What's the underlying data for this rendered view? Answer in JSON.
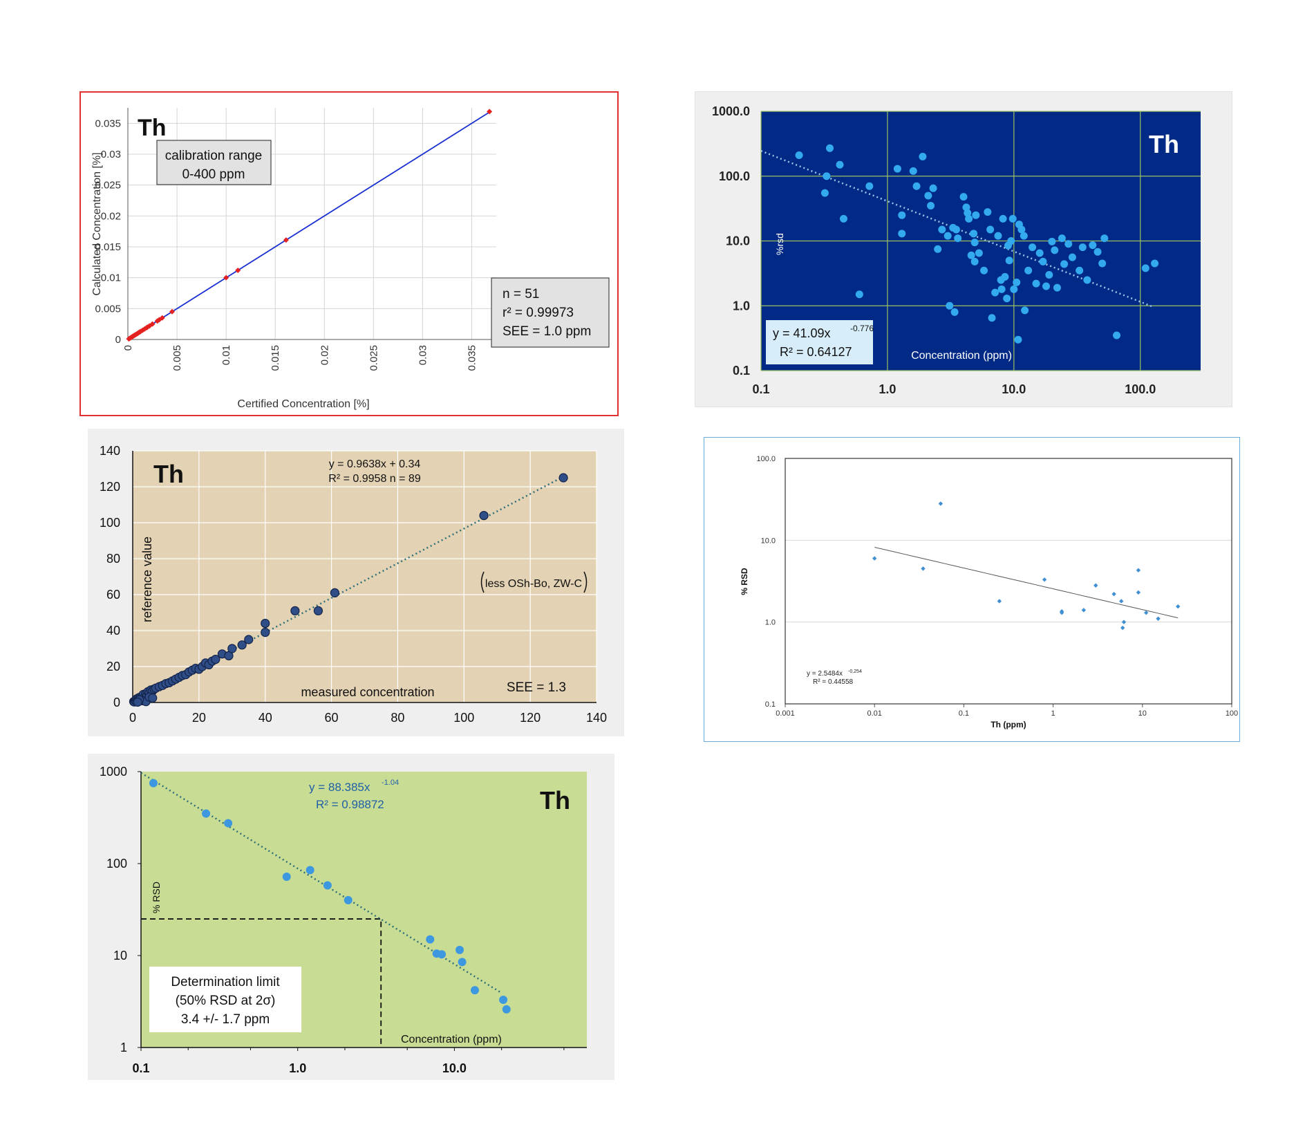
{
  "chart_data": [
    {
      "type": "scatter",
      "title": "Th",
      "xlabel": "Certified Concentration [%]",
      "ylabel": "Calculated Concentration [%]",
      "xlim": [
        0,
        0.0375
      ],
      "ylim": [
        0,
        0.0375
      ],
      "xticks": [
        "0",
        "0.005",
        "0.01",
        "0.015",
        "0.02",
        "0.025",
        "0.03",
        "0.035"
      ],
      "yticks": [
        "0",
        "0.005",
        "0.01",
        "0.015",
        "0.02",
        "0.025",
        "0.03",
        "0.035"
      ],
      "grid": true,
      "annotations": {
        "range_line1": "calibration range",
        "range_line2": "0-400 ppm",
        "n": "n = 51",
        "r2": "r² = 0.99973",
        "see": "SEE = 1.0 ppm"
      },
      "fit_line": {
        "x": [
          0,
          0.0368
        ],
        "y": [
          0,
          0.0368
        ]
      },
      "x": [
        0.0001,
        0.0002,
        0.0003,
        0.0004,
        0.0005,
        0.0006,
        0.0007,
        0.0008,
        0.0009,
        0.001,
        0.0011,
        0.0012,
        0.0013,
        0.0015,
        0.0017,
        0.0019,
        0.002,
        0.0022,
        0.0025,
        0.003,
        0.0032,
        0.0035,
        0.0045,
        0.01,
        0.0112,
        0.0161,
        0.0368
      ],
      "y": [
        0.0001,
        0.0002,
        0.0003,
        0.0004,
        0.0005,
        0.0006,
        0.0007,
        0.0008,
        0.0009,
        0.001,
        0.0011,
        0.0012,
        0.0013,
        0.0015,
        0.0017,
        0.0019,
        0.002,
        0.0022,
        0.0025,
        0.003,
        0.0032,
        0.0035,
        0.0045,
        0.01,
        0.0112,
        0.0161,
        0.0369
      ]
    },
    {
      "type": "scatter",
      "title": "Th",
      "xlabel": "Concentration (ppm)",
      "ylabel": "%rsd",
      "x_scale": "log",
      "y_scale": "log",
      "xlim": [
        0.1,
        300
      ],
      "ylim": [
        0.1,
        1000
      ],
      "xticks": [
        "0.1",
        "1.0",
        "10.0",
        "100.0"
      ],
      "yticks": [
        "0.1",
        "1.0",
        "10.0",
        "100.0",
        "1000.0"
      ],
      "grid": true,
      "annotations": {
        "eq": "y = 41.09x",
        "eq_exp": "-0.776",
        "r2": "R² = 0.64127"
      },
      "fit": {
        "a": 41.09,
        "b": -0.776,
        "x_range": [
          0.1,
          125
        ]
      },
      "x": [
        0.2,
        0.35,
        0.33,
        0.42,
        0.32,
        0.45,
        0.6,
        0.72,
        1.2,
        1.3,
        1.3,
        1.6,
        1.9,
        1.7,
        2.1,
        2.2,
        2.3,
        2.5,
        2.7,
        3.0,
        3.3,
        3.5,
        3.1,
        3.6,
        4.0,
        4.2,
        4.3,
        4.4,
        4.8,
        4.9,
        4.6,
        5.0,
        5.3,
        4.9,
        5.8,
        6.2,
        6.5,
        7.1,
        7.5,
        7.9,
        8.0,
        8.2,
        8.5,
        9.0,
        9.2,
        9.8,
        9.5,
        10.0,
        10.5,
        11.0,
        11.5,
        12.0,
        13.0,
        14.0,
        15.0,
        16.0,
        17.0,
        18.0,
        19.0,
        20.0,
        21.0,
        22.0,
        24.0,
        25.0,
        27.0,
        29.0,
        33.0,
        35.0,
        38.0,
        42.0,
        46.0,
        50.0,
        52.0,
        65.0,
        110.0,
        130.0,
        3.4,
        6.7,
        8.8,
        10.8,
        12.2
      ],
      "y": [
        210,
        270,
        100,
        150,
        55,
        22,
        1.5,
        70,
        130,
        25,
        13,
        120,
        200,
        70,
        50,
        35,
        65,
        7.5,
        15,
        12,
        16,
        15,
        1.0,
        11,
        48,
        33,
        27,
        22,
        13,
        9.5,
        6,
        25,
        6.5,
        4.8,
        3.5,
        28,
        15,
        1.6,
        12,
        2.5,
        1.8,
        22,
        2.8,
        8.5,
        5,
        22,
        10,
        1.8,
        2.3,
        18,
        15,
        12,
        3.5,
        8,
        2.2,
        6.5,
        4.8,
        2.0,
        3.0,
        9.8,
        7.2,
        1.9,
        11,
        4.4,
        9.0,
        5.6,
        3.5,
        8.0,
        2.5,
        8.6,
        6.8,
        4.5,
        11,
        0.35,
        3.8,
        4.5,
        0.8,
        0.65,
        1.3,
        0.3,
        0.85
      ]
    },
    {
      "type": "scatter",
      "title": "Th",
      "xlabel": "measured concentration",
      "ylabel": "reference value",
      "xlim": [
        0,
        140
      ],
      "ylim": [
        0,
        140
      ],
      "xticks": [
        "0",
        "20",
        "40",
        "60",
        "80",
        "100",
        "120",
        "140"
      ],
      "yticks": [
        "0",
        "20",
        "40",
        "60",
        "80",
        "100",
        "120",
        "140"
      ],
      "grid": true,
      "annotations": {
        "eq": "y = 0.9638x + 0.34",
        "r2": "R² = 0.9958   n = 89",
        "note": "less OSh-Bo, ZW-C",
        "see": "SEE = 1.3"
      },
      "fit": {
        "slope": 0.9638,
        "intercept": 0.34,
        "x_range": [
          0,
          130
        ]
      },
      "x": [
        0.3,
        0.5,
        0.8,
        1,
        1.2,
        1.5,
        1.8,
        2,
        2.3,
        2.5,
        3,
        3.2,
        3.5,
        4,
        4.3,
        4.6,
        5,
        5.5,
        6,
        6.5,
        7,
        8,
        9,
        10,
        11,
        12,
        13,
        14,
        15,
        16,
        17,
        18,
        19,
        20,
        21,
        22,
        23,
        24,
        25,
        27,
        29,
        30,
        33,
        35,
        40,
        40,
        49,
        56,
        61,
        106,
        130,
        3,
        4,
        5,
        6,
        2,
        1.5
      ],
      "y": [
        0.5,
        0.3,
        1.2,
        0.8,
        2,
        1.5,
        2.6,
        1.8,
        3,
        2.2,
        3.5,
        4.5,
        2.8,
        5,
        3.9,
        6,
        5.2,
        7,
        6.5,
        7.5,
        8,
        8.8,
        9.5,
        10.5,
        11,
        12,
        13,
        14,
        15,
        15.5,
        17,
        18,
        19,
        18.5,
        20,
        22,
        21,
        23,
        24,
        27,
        26,
        30,
        32,
        35,
        39,
        44,
        51,
        51,
        61,
        104,
        125,
        1,
        0.5,
        3,
        2.5,
        1.5,
        0.2
      ]
    },
    {
      "type": "scatter",
      "title": "",
      "xlabel": "Th (ppm)",
      "ylabel": "% RSD",
      "x_scale": "log",
      "y_scale": "log",
      "xlim": [
        0.001,
        100
      ],
      "ylim": [
        0.1,
        100
      ],
      "xticks": [
        "0.001",
        "0.01",
        "0.1",
        "1",
        "10",
        "100"
      ],
      "yticks": [
        "0.1",
        "1.0",
        "10.0",
        "100.0"
      ],
      "grid": true,
      "annotations": {
        "eq": "y = 2.5484x",
        "eq_exp": "-0.254",
        "r2": "R² = 0.44558"
      },
      "fit": {
        "a": 2.5484,
        "b": -0.254,
        "x_range": [
          0.01,
          25
        ]
      },
      "x": [
        0.01,
        0.035,
        0.055,
        0.25,
        0.8,
        1.25,
        1.25,
        2.2,
        3.0,
        4.8,
        5.8,
        6.0,
        6.2,
        9.0,
        9.0,
        11.0,
        15.0,
        25.0
      ],
      "y": [
        6.0,
        4.5,
        28.0,
        1.8,
        3.3,
        1.35,
        1.3,
        1.4,
        2.8,
        2.2,
        1.8,
        0.85,
        1.0,
        4.3,
        2.3,
        1.3,
        1.1,
        1.55
      ]
    },
    {
      "type": "scatter",
      "title": "Th",
      "xlabel": "Concentration (ppm)",
      "ylabel": "% RSD",
      "x_scale": "log",
      "y_scale": "log",
      "xlim": [
        0.1,
        70
      ],
      "ylim": [
        1,
        1000
      ],
      "xticks": [
        "0.1",
        "1.0",
        "10.0"
      ],
      "yticks": [
        "1",
        "10",
        "100",
        "1000"
      ],
      "annotations": {
        "eq": "y = 88.385x",
        "eq_exp": "-1.04",
        "r2": "R² = 0.98872",
        "box_line1": "Determination limit",
        "box_line2": "(50% RSD at 2σ)",
        "box_line3": "3.4 +/- 1.7 ppm"
      },
      "fit": {
        "a": 88.385,
        "b": -1.04,
        "x_range": [
          0.1,
          20
        ]
      },
      "limit": {
        "x": 3.4,
        "y": 25
      },
      "x": [
        0.12,
        0.26,
        0.36,
        0.85,
        1.2,
        1.55,
        2.1,
        7.0,
        7.7,
        8.3,
        10.8,
        11.2,
        13.5,
        20.5,
        21.5
      ],
      "y": [
        750,
        350,
        275,
        72,
        85,
        58,
        40,
        15,
        10.5,
        10.3,
        11.5,
        8.5,
        4.2,
        3.3,
        2.6
      ]
    }
  ]
}
